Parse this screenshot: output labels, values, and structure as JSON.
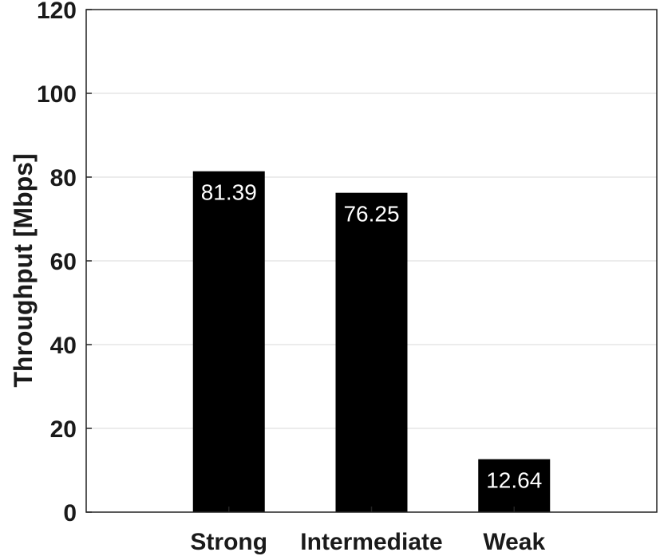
{
  "chart_data": {
    "type": "bar",
    "categories": [
      "Strong",
      "Intermediate",
      "Weak"
    ],
    "values": [
      81.39,
      76.25,
      12.64
    ],
    "data_labels": [
      "81.39",
      "76.25",
      "12.64"
    ],
    "title": "",
    "xlabel": "",
    "ylabel": "Throughput [Mbps]",
    "ylim": [
      0,
      120
    ],
    "yticks": [
      0,
      20,
      40,
      60,
      80,
      100,
      120
    ],
    "grid": "horizontal",
    "bar_color": "#000000",
    "label_color": "#ffffff"
  }
}
